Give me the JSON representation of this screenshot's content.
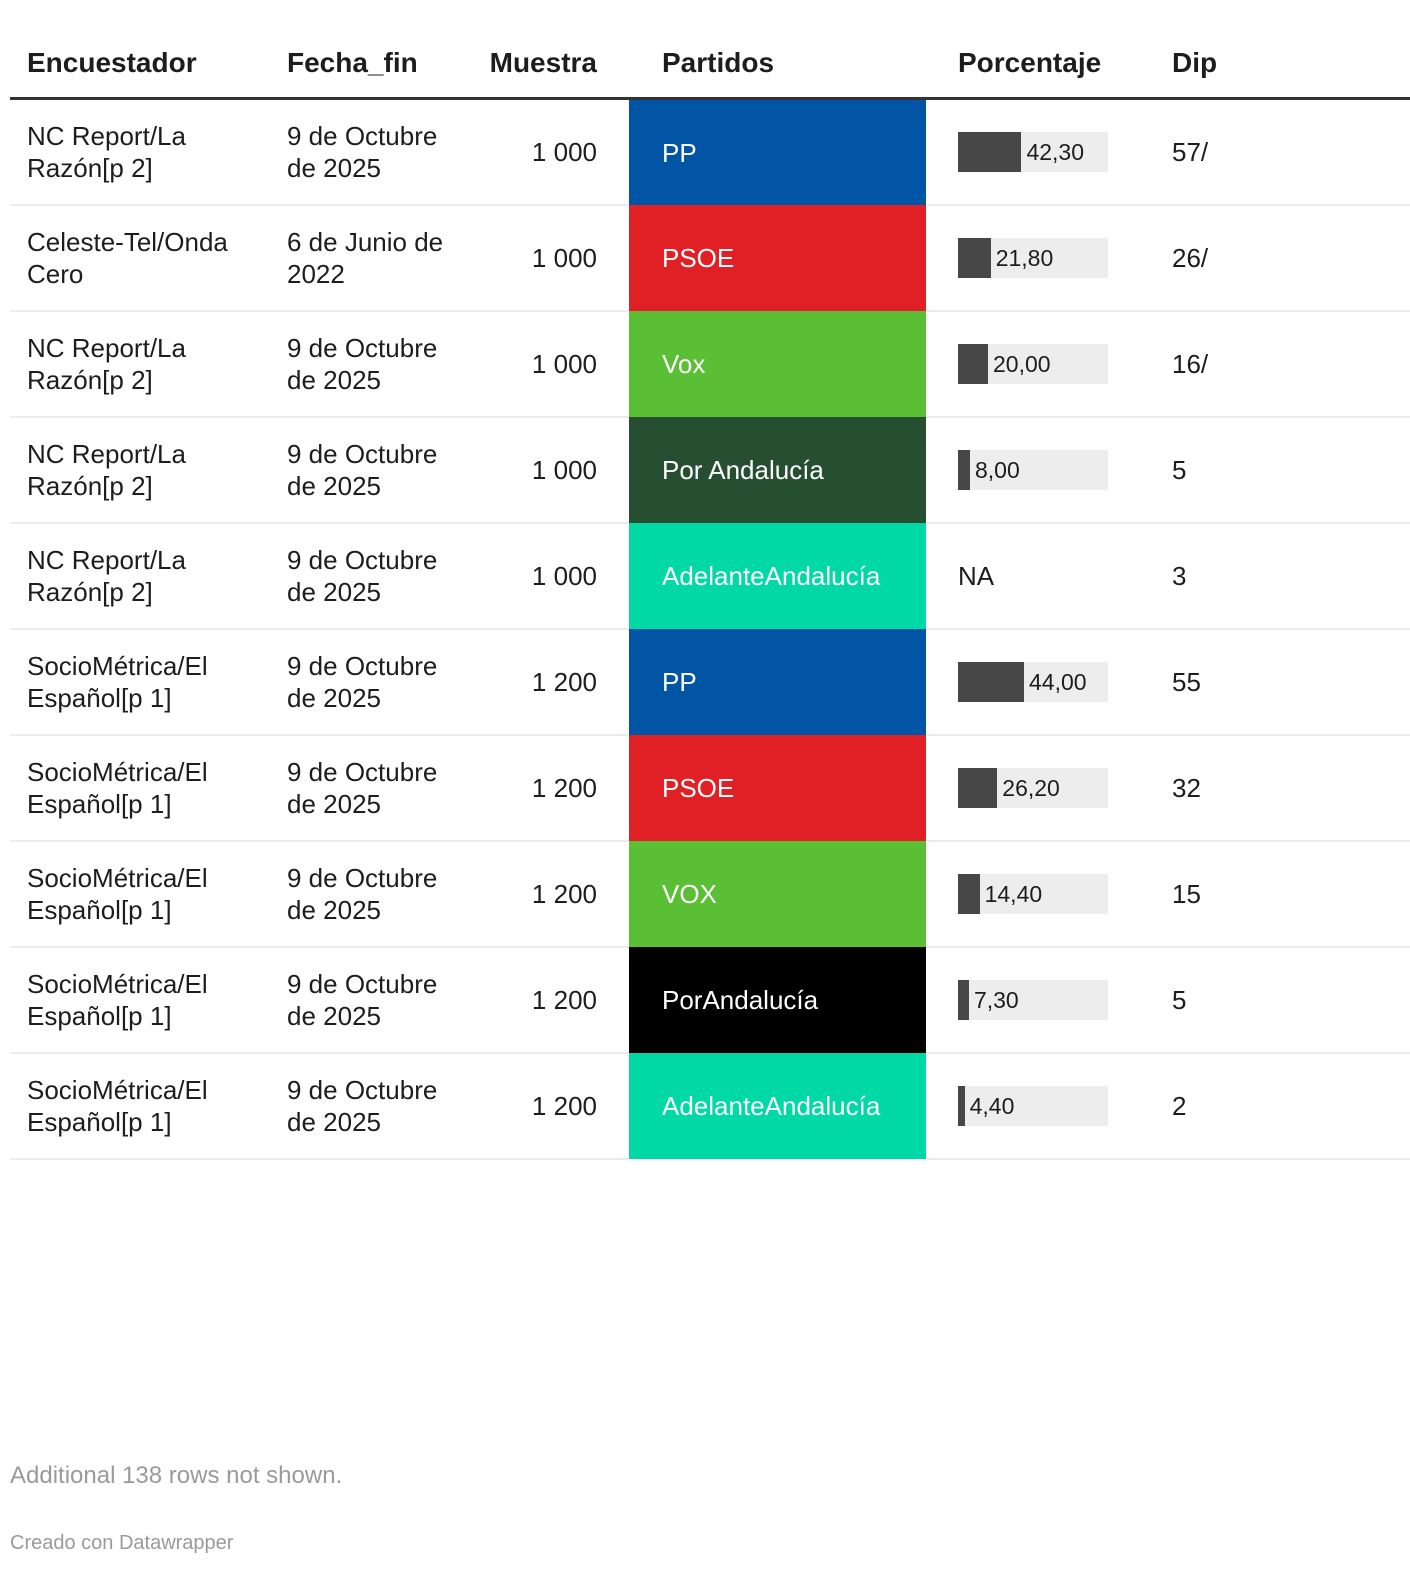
{
  "table": {
    "headers": [
      "Encuestador",
      "Fecha_fin",
      "Muestra",
      "Partidos",
      "Porcentaje",
      "Dip"
    ],
    "pct_max": 100,
    "rows": [
      {
        "encuestador": "NC Report/La Razón[p 2]",
        "fecha": "9 de Octubre de 2025",
        "muestra": "1 000",
        "partido": "PP",
        "color": "#0254a5",
        "porcentaje": 42.3,
        "porcentaje_label": "42,30",
        "dip": "57/"
      },
      {
        "encuestador": "Celeste-Tel/Onda Cero",
        "fecha": "6 de Junio de 2022",
        "muestra": "1 000",
        "partido": "PSOE",
        "color": "#e12025",
        "porcentaje": 21.8,
        "porcentaje_label": "21,80",
        "dip": "26/"
      },
      {
        "encuestador": "NC Report/La Razón[p 2]",
        "fecha": "9 de Octubre de 2025",
        "muestra": "1 000",
        "partido": "Vox",
        "color": "#5abf35",
        "porcentaje": 20.0,
        "porcentaje_label": "20,00",
        "dip": "16/"
      },
      {
        "encuestador": "NC Report/La Razón[p 2]",
        "fecha": "9 de Octubre de 2025",
        "muestra": "1 000",
        "partido": "Por Andalucía",
        "color": "#264e31",
        "porcentaje": 8.0,
        "porcentaje_label": "8,00",
        "dip": "5"
      },
      {
        "encuestador": "NC Report/La Razón[p 2]",
        "fecha": "9 de Octubre de 2025",
        "muestra": "1 000",
        "partido": "AdelanteAndalucía",
        "color": "#00d9a6",
        "porcentaje": null,
        "porcentaje_label": "NA",
        "dip": "3"
      },
      {
        "encuestador": "SocioMétrica/El Español[p 1]",
        "fecha": "9 de Octubre de 2025",
        "muestra": "1 200",
        "partido": "PP",
        "color": "#0254a5",
        "porcentaje": 44.0,
        "porcentaje_label": "44,00",
        "dip": "55"
      },
      {
        "encuestador": "SocioMétrica/El Español[p 1]",
        "fecha": "9 de Octubre de 2025",
        "muestra": "1 200",
        "partido": "PSOE",
        "color": "#e12025",
        "porcentaje": 26.2,
        "porcentaje_label": "26,20",
        "dip": "32"
      },
      {
        "encuestador": "SocioMétrica/El Español[p 1]",
        "fecha": "9 de Octubre de 2025",
        "muestra": "1 200",
        "partido": "VOX",
        "color": "#5abf35",
        "porcentaje": 14.4,
        "porcentaje_label": "14,40",
        "dip": "15"
      },
      {
        "encuestador": "SocioMétrica/El Español[p 1]",
        "fecha": "9 de Octubre de 2025",
        "muestra": "1 200",
        "partido": "PorAndalucía",
        "color": "#000000",
        "porcentaje": 7.3,
        "porcentaje_label": "7,30",
        "dip": "5"
      },
      {
        "encuestador": "SocioMétrica/El Español[p 1]",
        "fecha": "9 de Octubre de 2025",
        "muestra": "1 200",
        "partido": "AdelanteAndalucía",
        "color": "#00d9a6",
        "porcentaje": 4.4,
        "porcentaje_label": "4,40",
        "dip": "2"
      }
    ]
  },
  "footer": {
    "note": "Additional 138 rows not shown.",
    "credit": "Creado con Datawrapper"
  }
}
